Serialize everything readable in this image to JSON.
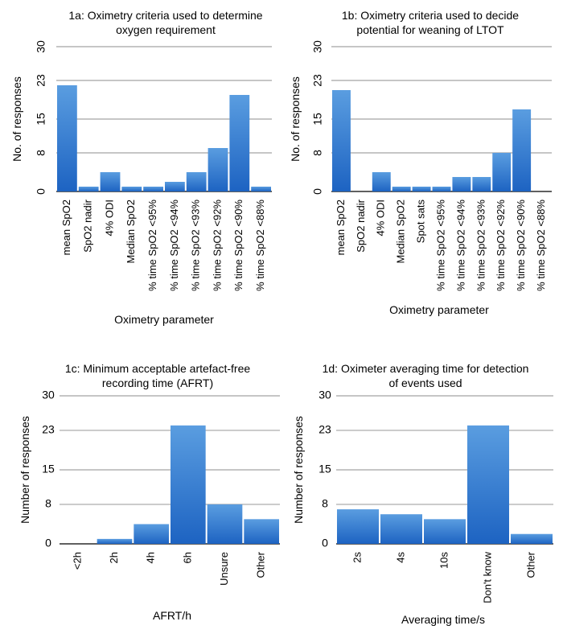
{
  "chart_data": [
    {
      "type": "bar",
      "title": "1a: Oximetry criteria used to determine oxygen requirement",
      "xlabel": "Oximetry parameter",
      "ylabel": "No. of responses",
      "ylim": [
        0,
        30
      ],
      "yticks": [
        "0",
        "8",
        "15",
        "23",
        "30"
      ],
      "grid": true,
      "categories": [
        "mean SpO2",
        "SpO2 nadir",
        "4% ODI",
        "Median SpO2",
        "% time SpO2 <95%",
        "% time SpO2 <94%",
        "% time SpO2 <93%",
        "% time SpO2 <92%",
        "% time SpO2 <90%",
        "% time SpO2 <88%"
      ],
      "values": [
        22,
        1,
        4,
        1,
        1,
        2,
        4,
        9,
        20,
        1
      ]
    },
    {
      "type": "bar",
      "title": "1b: Oximetry criteria used to decide potential for weaning of LTOT",
      "xlabel": "Oximetry parameter",
      "ylabel": "No. of responses",
      "ylim": [
        0,
        30
      ],
      "yticks": [
        "0",
        "8",
        "15",
        "23",
        "30"
      ],
      "grid": true,
      "categories": [
        "mean SpO2",
        "SpO2 nadir",
        "4% ODI",
        "Median SpO2",
        "Spot sats",
        "% time SpO2 <95%",
        "% time SpO2 <94%",
        "% time SpO2 <93%",
        "% time SpO2 <92%",
        "% time SpO2 <90%",
        "% time SpO2 <88%"
      ],
      "values": [
        21,
        0,
        4,
        1,
        1,
        1,
        3,
        3,
        8,
        17,
        0
      ]
    },
    {
      "type": "bar",
      "title": "1c: Minimum acceptable artefact-free recording time (AFRT)",
      "xlabel": "AFRT/h",
      "ylabel": "Number of responses",
      "ylim": [
        0,
        30
      ],
      "yticks": [
        "0",
        "8",
        "15",
        "23",
        "30"
      ],
      "grid": true,
      "categories": [
        "<2h",
        "2h",
        "4h",
        "6h",
        "Unsure",
        "Other"
      ],
      "values": [
        0,
        1,
        4,
        24,
        8,
        5
      ]
    },
    {
      "type": "bar",
      "title": "1d: Oximeter averaging time for detection of events used",
      "xlabel": "Averaging time/s",
      "ylabel": "Number of responses",
      "ylim": [
        0,
        30
      ],
      "yticks": [
        "0",
        "8",
        "15",
        "23",
        "30"
      ],
      "grid": true,
      "categories": [
        "2s",
        "4s",
        "10s",
        "Don't know",
        "Other"
      ],
      "values": [
        7,
        6,
        5,
        24,
        2
      ]
    }
  ]
}
